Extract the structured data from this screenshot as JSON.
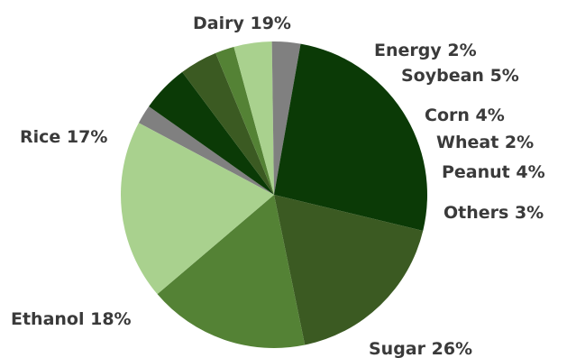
{
  "chart_data": {
    "type": "pie",
    "slices": [
      {
        "label": "Energy 2%",
        "value": 2,
        "color": "#808080"
      },
      {
        "label": "Soybean 5%",
        "value": 5,
        "color": "#0b3a06"
      },
      {
        "label": "Corn 4%",
        "value": 4,
        "color": "#3b5a22"
      },
      {
        "label": "Wheat 2%",
        "value": 2,
        "color": "#548235"
      },
      {
        "label": "Peanut 4%",
        "value": 4,
        "color": "#a9d18e"
      },
      {
        "label": "Others 3%",
        "value": 3,
        "color": "#808080"
      },
      {
        "label": "Sugar 26%",
        "value": 26,
        "color": "#0b3a06"
      },
      {
        "label": "Ethanol 18%",
        "value": 18,
        "color": "#3b5a22"
      },
      {
        "label": "Rice 17%",
        "value": 17,
        "color": "#548235"
      },
      {
        "label": "Dairy 19%",
        "value": 19,
        "color": "#a9d18e"
      }
    ],
    "label_color": "#3a3a3a",
    "legend": "none"
  }
}
